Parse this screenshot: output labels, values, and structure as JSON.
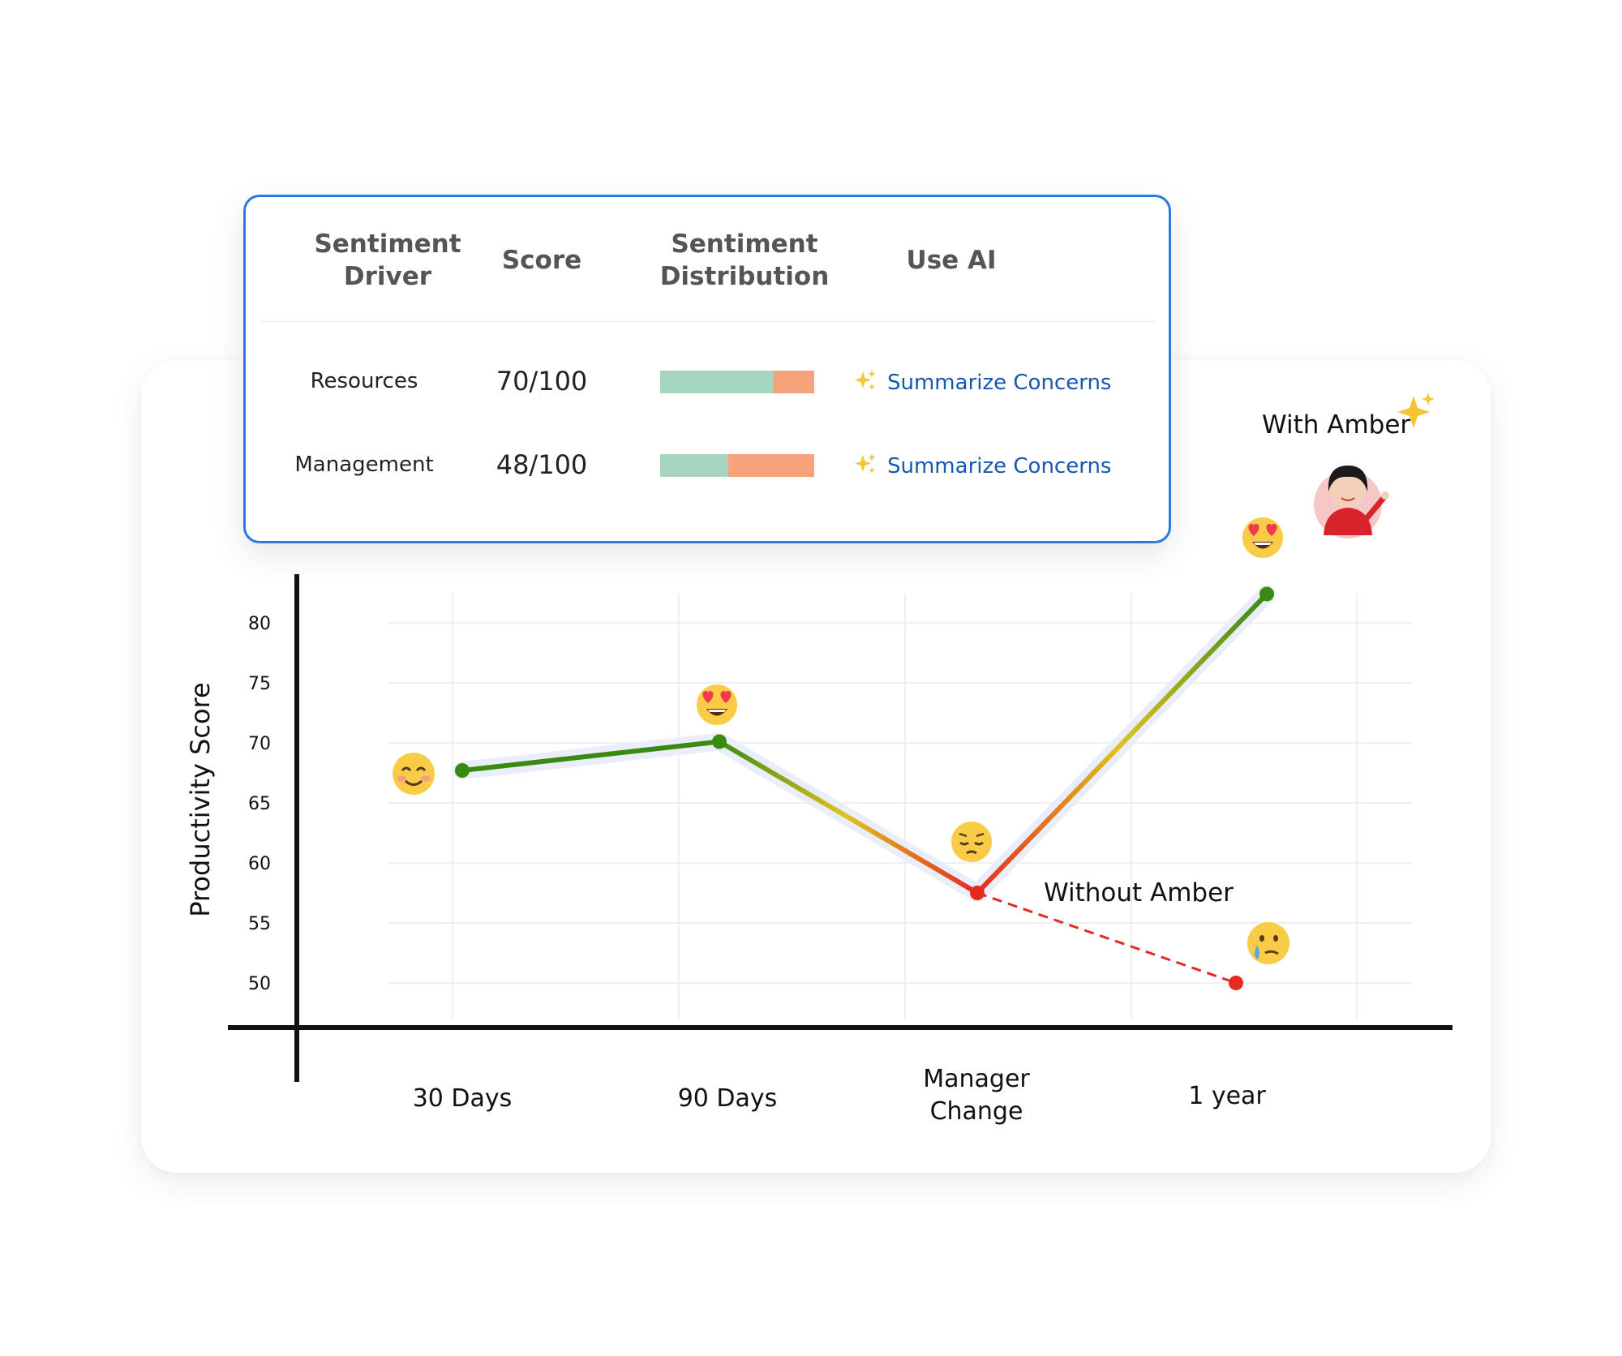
{
  "table": {
    "headers": {
      "driver": [
        "Sentiment",
        "Driver"
      ],
      "score": "Score",
      "distribution": [
        "Sentiment",
        "Distribution"
      ],
      "ai": "Use AI"
    },
    "rows": [
      {
        "driver": "Resources",
        "score": "70/100",
        "positive_fraction": 0.73,
        "action": "Summarize Concerns"
      },
      {
        "driver": "Management",
        "score": "48/100",
        "positive_fraction": 0.44,
        "action": "Summarize Concerns"
      }
    ]
  },
  "colors": {
    "card_border": "#2a7ae2",
    "link": "#1558b0",
    "dist_positive": "#a5d6bf",
    "dist_negative": "#f8a27c",
    "line_green": "#3a8a12",
    "line_yellow": "#e0c21f",
    "line_red": "#e52b20"
  },
  "chart_data": {
    "type": "line",
    "ylabel": "Productivity Score",
    "xlabel": "",
    "ylim": [
      47,
      83
    ],
    "y_ticks": [
      80,
      75,
      70,
      65,
      60,
      55,
      50
    ],
    "categories": [
      "30 Days",
      "90 Days",
      [
        "Manager",
        "Change"
      ],
      "1 year"
    ],
    "grid": true,
    "series": [
      {
        "name": "With Amber",
        "points": [
          {
            "x": 0,
            "y": 67.7
          },
          {
            "x": 1,
            "y": 70.1
          },
          {
            "x": 2,
            "y": 57.5
          },
          {
            "x": 3,
            "y": 82.4
          }
        ]
      },
      {
        "name": "Without Amber",
        "style": "dashed",
        "points": [
          {
            "x": 2,
            "y": 57.5
          },
          {
            "x": 3,
            "y": 50.0
          }
        ]
      }
    ],
    "annotations": {
      "with_label": "With Amber",
      "without_label": "Without Amber"
    },
    "emoji_markers": [
      "smiling-face-icon",
      "heart-eyes-icon",
      "pensive-face-icon",
      "heart-eyes-icon",
      "tearful-face-icon"
    ]
  }
}
